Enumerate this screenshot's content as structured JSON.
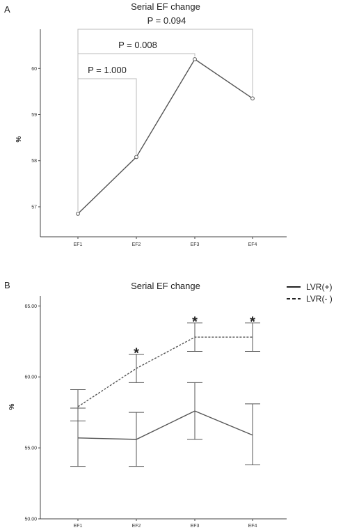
{
  "chart_data": [
    {
      "panel": "A",
      "type": "line",
      "title": "Serial EF change",
      "ylabel": "%",
      "xlabel": "",
      "categories": [
        "EF1",
        "EF2",
        "EF3",
        "EF4"
      ],
      "values": [
        56.85,
        58.08,
        60.2,
        59.35
      ],
      "ylim": [
        56.35,
        60.85
      ],
      "yticks": [
        "57",
        "58",
        "59",
        "60"
      ],
      "yticks_values": [
        57,
        58,
        59,
        60
      ],
      "comparisons": [
        {
          "from": "EF1",
          "to": "EF2",
          "label": "P = 1.000"
        },
        {
          "from": "EF1",
          "to": "EF3",
          "label": "P = 0.008"
        },
        {
          "from": "EF1",
          "to": "EF4",
          "label": "P = 0.094"
        }
      ]
    },
    {
      "panel": "B",
      "type": "line",
      "title": "Serial EF change",
      "ylabel": "%",
      "xlabel": "",
      "categories": [
        "EF1",
        "EF2",
        "EF3",
        "EF4"
      ],
      "ylim": [
        50,
        65.7
      ],
      "yticks": [
        "50.00",
        "55.00",
        "60.00",
        "65.00"
      ],
      "yticks_values": [
        50,
        55,
        60,
        65
      ],
      "legend_position": "top-right",
      "series": [
        {
          "name": "LVR(+)",
          "style": "solid",
          "values": [
            55.7,
            55.6,
            57.6,
            55.9
          ],
          "err_low": [
            53.7,
            53.7,
            55.6,
            53.8
          ],
          "err_high": [
            57.8,
            57.5,
            59.6,
            58.1
          ]
        },
        {
          "name": "LVR(- )",
          "style": "dashed",
          "values": [
            57.9,
            60.6,
            62.8,
            62.8
          ],
          "err_low": [
            56.9,
            59.6,
            61.8,
            61.8
          ],
          "err_high": [
            59.1,
            61.6,
            63.8,
            63.8
          ]
        }
      ],
      "significance": [
        {
          "category": "EF2",
          "label": "*"
        },
        {
          "category": "EF3",
          "label": "*"
        },
        {
          "category": "EF4",
          "label": "*"
        }
      ]
    }
  ]
}
